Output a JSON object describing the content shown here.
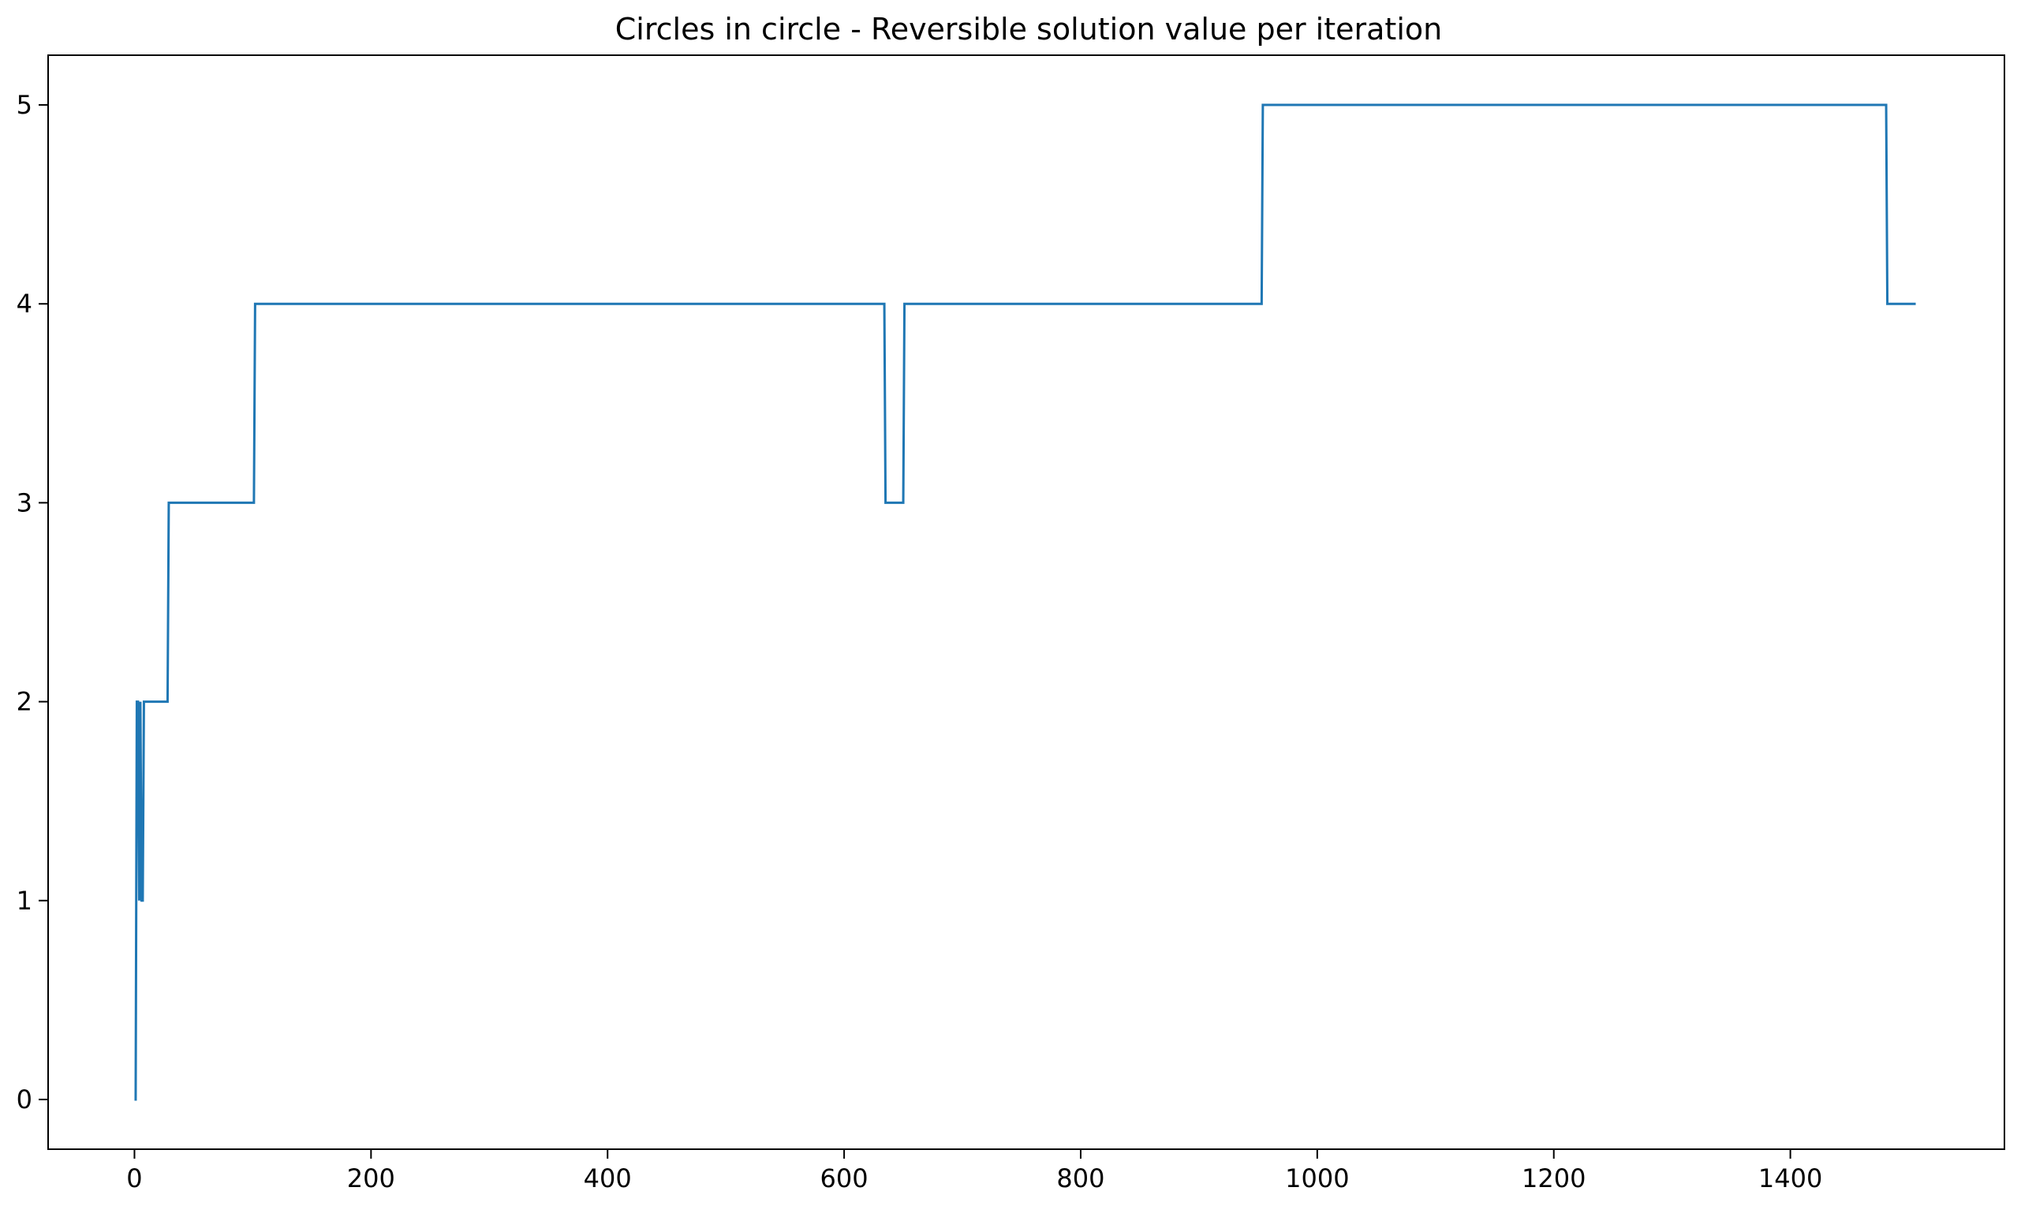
{
  "chart_data": {
    "type": "line",
    "title": "Circles in circle - Reversible solution value per iteration",
    "xlabel": "",
    "ylabel": "",
    "xlim": [
      -73,
      1581
    ],
    "ylim": [
      -0.25,
      5.25
    ],
    "xticks": [
      0,
      200,
      400,
      600,
      800,
      1000,
      1200,
      1400
    ],
    "yticks": [
      0,
      1,
      2,
      3,
      4,
      5
    ],
    "grid": false,
    "legend": "none",
    "line_color": "#1f77b4",
    "series": [
      {
        "x": [
          0,
          1,
          2,
          3,
          4,
          5,
          6,
          7,
          8,
          28,
          29,
          101,
          102,
          634,
          635,
          650,
          651,
          953,
          954,
          1481,
          1482,
          1506
        ],
        "y": [
          0,
          0,
          2,
          2,
          1,
          2,
          1,
          1,
          2,
          2,
          3,
          3,
          4,
          4,
          3,
          3,
          4,
          4,
          5,
          5,
          4,
          4
        ]
      }
    ]
  }
}
